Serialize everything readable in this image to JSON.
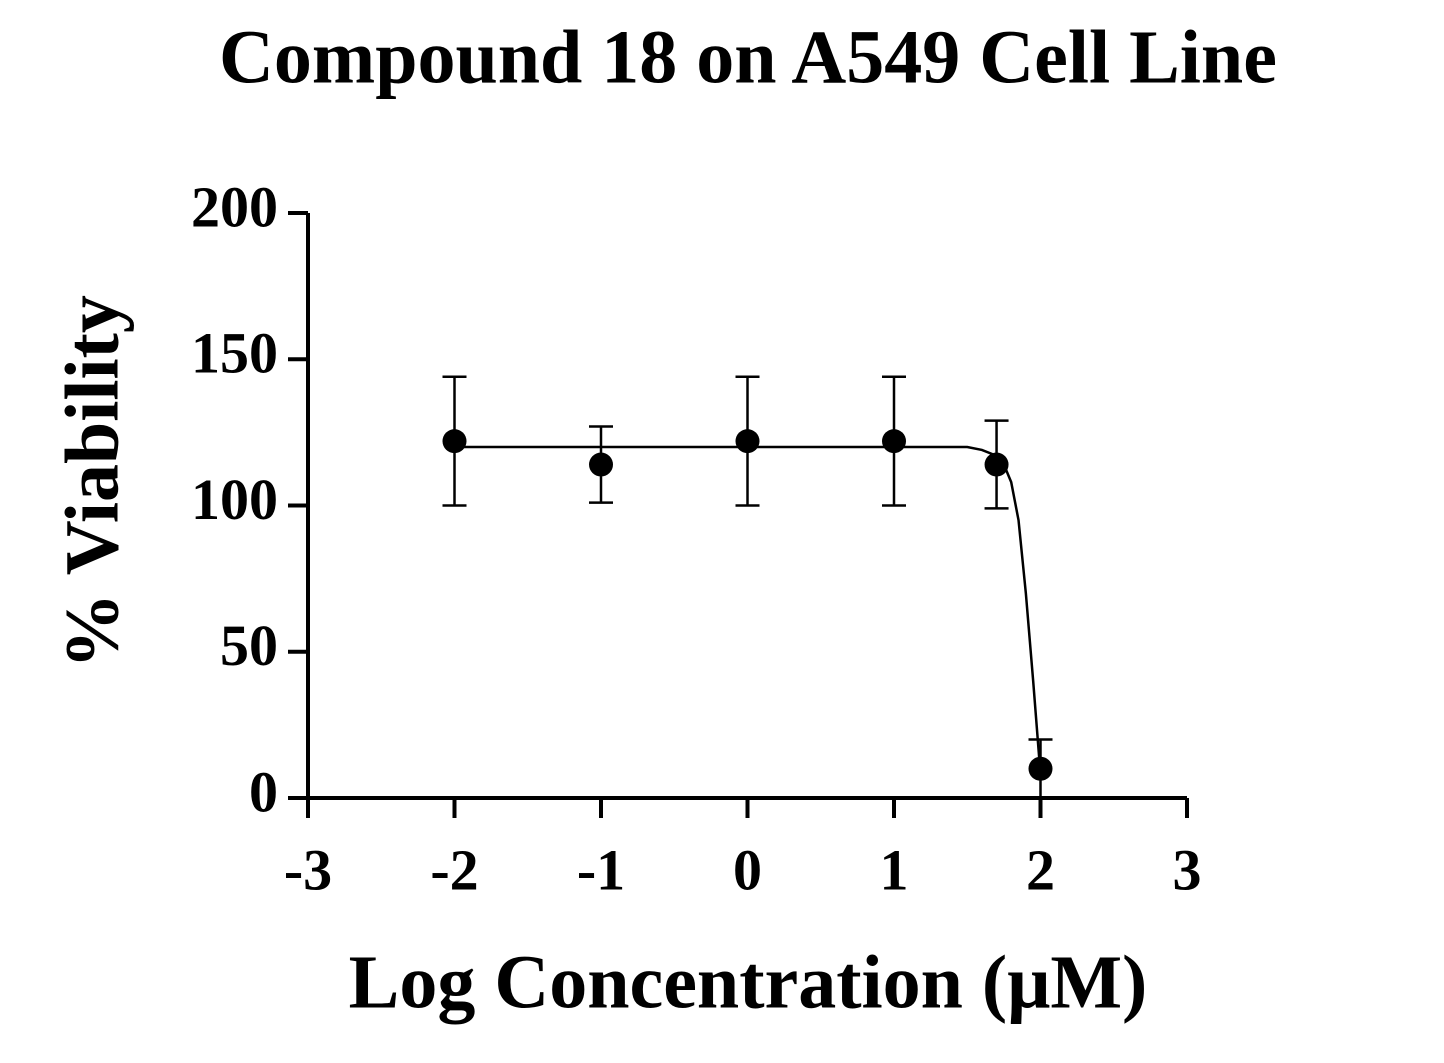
{
  "chart_data": {
    "type": "scatter",
    "title": "Compound 18 on A549 Cell Line",
    "x_label": "Log Concentration (μM)",
    "y_label": "% Viability",
    "xlim": [
      -3,
      3
    ],
    "xticks": [
      -3,
      -2,
      -1,
      0,
      1,
      2,
      3
    ],
    "ylim": [
      0,
      200
    ],
    "yticks": [
      0,
      50,
      100,
      150,
      200
    ],
    "series": [
      {
        "color": "#000000",
        "x": [
          -2,
          -1,
          0,
          1,
          1.7,
          2
        ],
        "values": [
          122,
          114,
          122,
          122,
          114,
          10
        ],
        "errors": [
          22,
          13,
          22,
          22,
          15,
          10
        ]
      }
    ],
    "fit": {
      "color": "#000000",
      "x": [
        -2,
        1.5,
        1.6,
        1.7,
        1.75,
        1.8,
        1.85,
        1.9,
        1.95,
        2.0
      ],
      "values": [
        120,
        120,
        119,
        117,
        114,
        108,
        95,
        70,
        40,
        8
      ]
    }
  }
}
